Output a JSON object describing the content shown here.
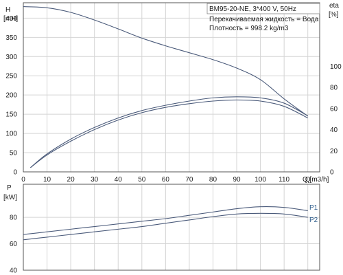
{
  "title": "BM95-20-NE, 3*400 V, 50Hz",
  "fluid_note": "Перекачиваемая жидкость = Вода",
  "density_note": "Плотность = 998.2 kg/m3",
  "colors": {
    "curve": "#4a5a7a",
    "grid": "#d4d4d4",
    "frame": "#555555",
    "series_tag": "#2a5a8a"
  },
  "chart_data": [
    {
      "type": "line",
      "xlabel": "Q [m3/h]",
      "ylabel": "H",
      "yunit": "[mH]",
      "y2label": "eta",
      "y2unit": "[%]",
      "xlim": [
        0,
        125
      ],
      "ylim": [
        0,
        440
      ],
      "y2lim": [
        0,
        160
      ],
      "x_ticks": [
        "0",
        "10",
        "20",
        "30",
        "40",
        "50",
        "60",
        "70",
        "80",
        "90",
        "100",
        "110"
      ],
      "x_end_tick": "Q",
      "y_ticks": [
        0,
        50,
        100,
        150,
        200,
        250,
        300,
        350,
        400
      ],
      "y2_ticks": [
        0,
        20,
        40,
        60,
        80,
        100
      ],
      "grid": true,
      "series": [
        {
          "axis": "left",
          "x": [
            0,
            10,
            20,
            30,
            40,
            50,
            60,
            70,
            80,
            90,
            100,
            110,
            120
          ],
          "y": [
            430,
            427,
            415,
            395,
            372,
            348,
            328,
            310,
            292,
            270,
            240,
            190,
            145
          ]
        },
        {
          "axis": "right",
          "x": [
            3,
            10,
            20,
            30,
            40,
            50,
            60,
            70,
            80,
            90,
            100,
            110,
            120
          ],
          "y": [
            4,
            17,
            31,
            42,
            51,
            58,
            63,
            67,
            70,
            71,
            70,
            65,
            53
          ]
        },
        {
          "axis": "right",
          "x": [
            3,
            10,
            20,
            30,
            40,
            50,
            60,
            70,
            80,
            90,
            100,
            110,
            120
          ],
          "y": [
            4,
            16,
            29,
            40,
            49,
            56,
            61,
            64.5,
            67,
            68,
            67,
            62,
            51
          ]
        }
      ]
    },
    {
      "type": "line",
      "xlabel": "",
      "ylabel": "P",
      "yunit": "[kW]",
      "xlim": [
        0,
        125
      ],
      "ylim": [
        40,
        105
      ],
      "y_ticks": [
        40,
        60,
        80
      ],
      "grid": true,
      "series": [
        {
          "name": "P1",
          "x": [
            0,
            10,
            20,
            30,
            40,
            50,
            60,
            70,
            80,
            90,
            100,
            110,
            120
          ],
          "y": [
            67,
            69,
            71,
            73,
            75,
            77,
            79,
            81.5,
            84,
            86.5,
            88,
            87.5,
            85
          ]
        },
        {
          "name": "P2",
          "x": [
            0,
            10,
            20,
            30,
            40,
            50,
            60,
            70,
            80,
            90,
            100,
            110,
            120
          ],
          "y": [
            63,
            65,
            67,
            69,
            71,
            73,
            75.5,
            78,
            80.5,
            82.5,
            83,
            82.5,
            80
          ]
        }
      ]
    }
  ]
}
